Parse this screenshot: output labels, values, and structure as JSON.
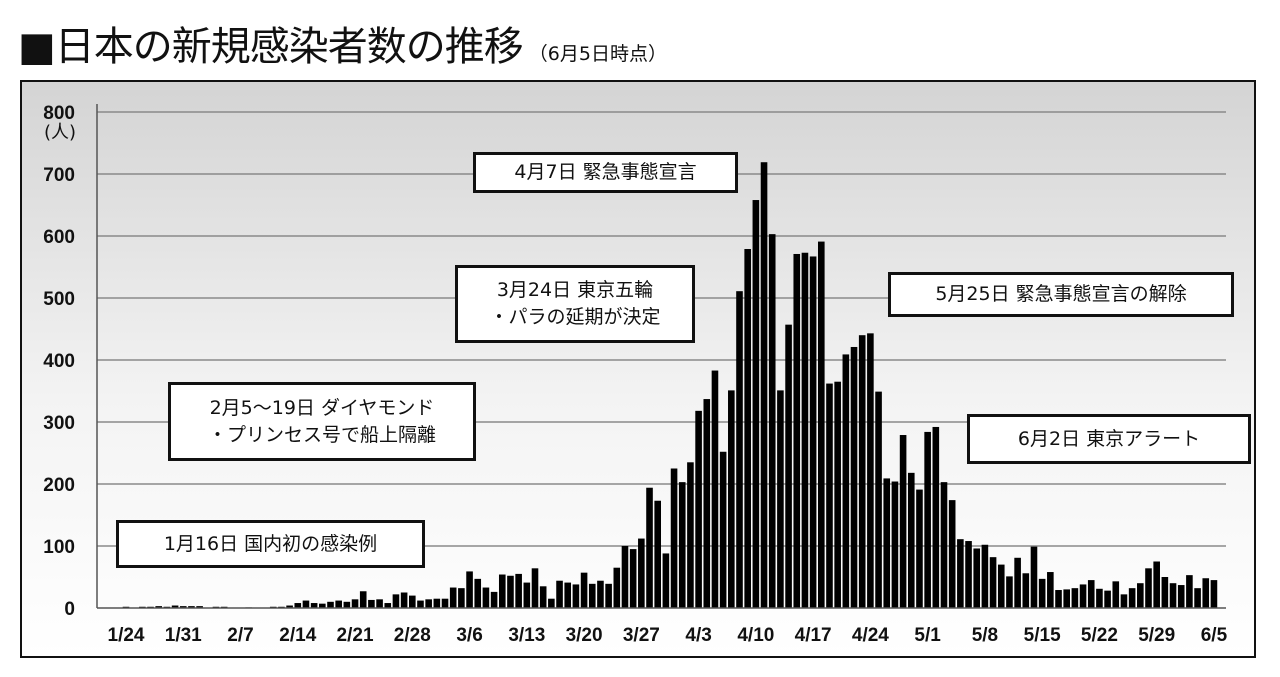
{
  "title": "■日本の新規感染者数の推移",
  "subtitle": "（6月5日時点）",
  "chart_data": {
    "type": "bar",
    "title": "日本の新規感染者数の推移",
    "ylabel": "(人)",
    "ylim": [
      0,
      800
    ],
    "yticks": [
      0,
      100,
      200,
      300,
      400,
      500,
      600,
      700,
      800
    ],
    "grid": true,
    "start_date": "1/24",
    "x_tick_labels": [
      "1/24",
      "1/31",
      "2/7",
      "2/14",
      "2/21",
      "2/28",
      "3/6",
      "3/13",
      "3/20",
      "3/27",
      "4/3",
      "4/10",
      "4/17",
      "4/24",
      "5/1",
      "5/8",
      "5/15",
      "5/22",
      "5/29",
      "6/5"
    ],
    "bar_color": "#000000",
    "values": [
      2,
      0,
      2,
      2,
      3,
      2,
      4,
      3,
      3,
      3,
      0,
      2,
      2,
      0,
      0,
      1,
      0,
      0,
      2,
      2,
      4,
      8,
      12,
      8,
      7,
      10,
      12,
      10,
      14,
      27,
      13,
      14,
      8,
      22,
      25,
      20,
      12,
      14,
      15,
      15,
      33,
      32,
      59,
      47,
      33,
      26,
      54,
      52,
      55,
      41,
      64,
      35,
      15,
      44,
      41,
      38,
      57,
      39,
      44,
      39,
      65,
      100,
      95,
      112,
      194,
      173,
      88,
      225,
      203,
      235,
      318,
      337,
      383,
      252,
      351,
      511,
      579,
      658,
      719,
      603,
      351,
      457,
      571,
      573,
      567,
      591,
      362,
      365,
      409,
      421,
      440,
      443,
      349,
      209,
      204,
      279,
      218,
      191,
      284,
      292,
      203,
      174,
      111,
      108,
      96,
      102,
      82,
      70,
      51,
      81,
      56,
      99,
      47,
      58,
      29,
      30,
      32,
      38,
      45,
      31,
      28,
      43,
      22,
      32,
      40,
      64,
      75,
      50,
      40,
      37,
      53,
      32,
      48,
      45
    ],
    "annotations": [
      {
        "text": "4月7日 緊急事態宣言"
      },
      {
        "text": "3月24日 東京五輪\n・パラの延期が決定"
      },
      {
        "text": "5月25日 緊急事態宣言の解除"
      },
      {
        "text": "2月5〜19日 ダイヤモンド\n・プリンセス号で船上隔離"
      },
      {
        "text": "6月2日 東京アラート"
      },
      {
        "text": "1月16日 国内初の感染例"
      }
    ]
  }
}
